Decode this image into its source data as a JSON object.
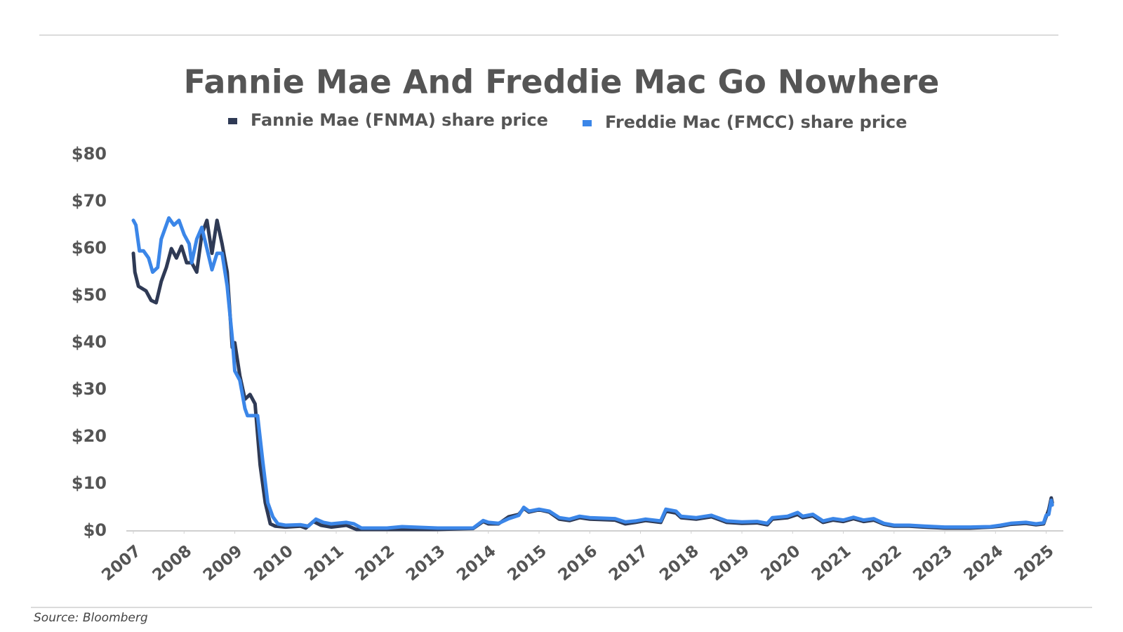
{
  "chart_data": {
    "type": "line",
    "title": "Fannie Mae And Freddie Mac Go Nowhere",
    "source": "Source: Bloomberg",
    "series": [
      {
        "name": "Fannie Mae (FNMA) share price",
        "color": "#2f3a55",
        "x": [
          2007.0,
          2007.03,
          2007.1,
          2007.25,
          2007.35,
          2007.45,
          2007.55,
          2007.65,
          2007.75,
          2007.85,
          2007.95,
          2008.05,
          2008.15,
          2008.25,
          2008.35,
          2008.45,
          2008.55,
          2008.65,
          2008.75,
          2008.85,
          2008.95,
          2009.0,
          2009.1,
          2009.2,
          2009.3,
          2009.4,
          2009.5,
          2009.6,
          2009.7,
          2009.8,
          2010.0,
          2010.3,
          2010.4,
          2010.55,
          2010.7,
          2010.9,
          2011.2,
          2011.4,
          2012.0,
          2013.0,
          2013.7,
          2013.9,
          2014.0,
          2014.2,
          2014.4,
          2014.6,
          2014.7,
          2014.8,
          2015.0,
          2015.2,
          2015.4,
          2015.6,
          2015.8,
          2016.0,
          2016.5,
          2016.7,
          2016.9,
          2017.1,
          2017.4,
          2017.5,
          2017.7,
          2017.8,
          2018.1,
          2018.4,
          2018.7,
          2019.0,
          2019.3,
          2019.5,
          2019.6,
          2019.9,
          2020.1,
          2020.2,
          2020.4,
          2020.6,
          2020.8,
          2021.0,
          2021.2,
          2021.4,
          2021.6,
          2021.8,
          2022.0,
          2022.3,
          2022.6,
          2023.0,
          2023.5,
          2023.9,
          2024.1,
          2024.3,
          2024.6,
          2024.8,
          2024.95,
          2025.0,
          2025.05,
          2025.1,
          2025.12
        ],
        "values": [
          59,
          55,
          52,
          51,
          49,
          48.5,
          53,
          56,
          60,
          58,
          60.5,
          57,
          57,
          55,
          63,
          66,
          59,
          66,
          61,
          55,
          39,
          40,
          33,
          28,
          29,
          27,
          14,
          6,
          1.5,
          1,
          0.8,
          1,
          0.6,
          2,
          1.2,
          0.8,
          1.2,
          0.3,
          0.3,
          0.3,
          0.5,
          2,
          1.5,
          1.5,
          3,
          3.5,
          4.8,
          4,
          4.5,
          4,
          2.5,
          2.2,
          2.8,
          2.5,
          2.3,
          1.5,
          1.8,
          2.2,
          1.8,
          4.2,
          3.8,
          2.8,
          2.5,
          3.0,
          1.8,
          1.6,
          1.7,
          1.3,
          2.5,
          2.8,
          3.5,
          2.8,
          3.2,
          1.8,
          2.3,
          2.0,
          2.6,
          2.0,
          2.3,
          1.4,
          1.0,
          1.0,
          0.8,
          0.6,
          0.6,
          0.8,
          1.0,
          1.4,
          1.6,
          1.3,
          1.5,
          3.0,
          4.5,
          7.0,
          6.0
        ]
      },
      {
        "name": "Freddie Mac (FMCC) share price",
        "color": "#3b86e8",
        "x": [
          2007.0,
          2007.05,
          2007.12,
          2007.2,
          2007.3,
          2007.38,
          2007.48,
          2007.55,
          2007.7,
          2007.8,
          2007.9,
          2008.0,
          2008.1,
          2008.15,
          2008.25,
          2008.35,
          2008.45,
          2008.55,
          2008.65,
          2008.75,
          2008.85,
          2008.95,
          2009.0,
          2009.1,
          2009.2,
          2009.25,
          2009.35,
          2009.45,
          2009.55,
          2009.65,
          2009.75,
          2009.85,
          2010.0,
          2010.3,
          2010.45,
          2010.6,
          2010.75,
          2010.9,
          2011.2,
          2011.35,
          2011.5,
          2012.0,
          2012.3,
          2013.0,
          2013.7,
          2013.9,
          2014.0,
          2014.2,
          2014.4,
          2014.6,
          2014.7,
          2014.8,
          2015.0,
          2015.2,
          2015.4,
          2015.6,
          2015.8,
          2016.0,
          2016.5,
          2016.7,
          2016.9,
          2017.1,
          2017.4,
          2017.5,
          2017.7,
          2017.8,
          2018.1,
          2018.4,
          2018.7,
          2019.0,
          2019.3,
          2019.5,
          2019.6,
          2019.9,
          2020.1,
          2020.2,
          2020.4,
          2020.6,
          2020.8,
          2021.0,
          2021.2,
          2021.4,
          2021.6,
          2021.8,
          2022.0,
          2022.3,
          2022.6,
          2023.0,
          2023.5,
          2023.9,
          2024.1,
          2024.3,
          2024.6,
          2024.8,
          2024.95,
          2025.0,
          2025.05,
          2025.1,
          2025.12
        ],
        "values": [
          66,
          65,
          59.5,
          59.5,
          58,
          55,
          56,
          62,
          66.5,
          65,
          66,
          63,
          61,
          57,
          62,
          64.5,
          60,
          55.5,
          59,
          59,
          52,
          41,
          34,
          32,
          26,
          24.5,
          24.5,
          24.5,
          15,
          6,
          3,
          1.5,
          1.2,
          1.3,
          1.0,
          2.5,
          1.8,
          1.5,
          1.8,
          1.5,
          0.6,
          0.6,
          0.9,
          0.6,
          0.6,
          2.2,
          1.8,
          1.6,
          2.6,
          3.3,
          5,
          4.2,
          4.6,
          4.2,
          2.8,
          2.5,
          3.1,
          2.8,
          2.6,
          1.9,
          2.1,
          2.5,
          2.1,
          4.6,
          4.2,
          3.1,
          2.8,
          3.3,
          2.1,
          1.9,
          2.0,
          1.6,
          2.8,
          3.1,
          3.9,
          3.1,
          3.5,
          2.1,
          2.6,
          2.3,
          2.9,
          2.3,
          2.6,
          1.6,
          1.2,
          1.2,
          1.0,
          0.8,
          0.8,
          0.9,
          1.2,
          1.6,
          1.8,
          1.5,
          1.7,
          3.3,
          3.5,
          6.5,
          5.5
        ]
      }
    ],
    "xlim": [
      2007,
      2025.2
    ],
    "xticks": [
      2007,
      2008,
      2009,
      2010,
      2011,
      2012,
      2013,
      2014,
      2015,
      2016,
      2017,
      2018,
      2019,
      2020,
      2021,
      2022,
      2023,
      2024,
      2025
    ],
    "ylim": [
      0,
      80
    ],
    "yticks": [
      {
        "value": 0,
        "label": "$0"
      },
      {
        "value": 10,
        "label": "$10"
      },
      {
        "value": 20,
        "label": "$20"
      },
      {
        "value": 30,
        "label": "$30"
      },
      {
        "value": 40,
        "label": "$40"
      },
      {
        "value": 50,
        "label": "$50"
      },
      {
        "value": 60,
        "label": "$60"
      },
      {
        "value": 70,
        "label": "$70"
      },
      {
        "value": 80,
        "label": "$80"
      }
    ],
    "grid": false
  }
}
